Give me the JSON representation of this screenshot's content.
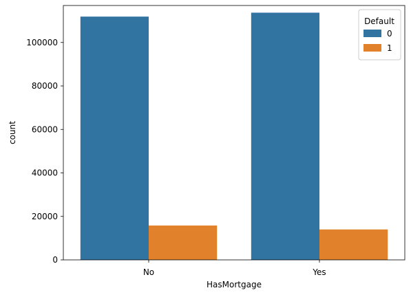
{
  "chart_data": {
    "type": "bar",
    "title": "",
    "xlabel": "HasMortgage",
    "ylabel": "count",
    "categories": [
      "No",
      "Yes"
    ],
    "ylim": [
      0,
      117000
    ],
    "yticks": [
      0,
      20000,
      40000,
      60000,
      80000,
      100000
    ],
    "grid": false,
    "legend": {
      "title": "Default",
      "placement": "top-right"
    },
    "series": [
      {
        "name": "0",
        "color": "#3274a1",
        "values": [
          111900,
          113700
        ]
      },
      {
        "name": "1",
        "color": "#e1812c",
        "values": [
          15800,
          14000
        ]
      }
    ]
  }
}
